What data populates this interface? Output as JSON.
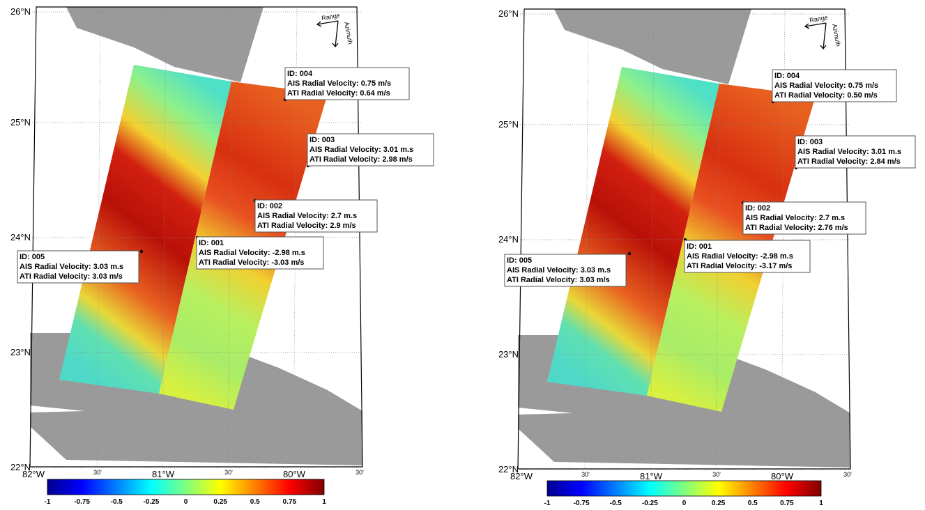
{
  "panels": [
    {
      "latitude_labels": [
        "26°N",
        "25°N",
        "24°N",
        "23°N",
        "22°N"
      ],
      "longitude_labels": [
        "82°W",
        "30'",
        "81°W",
        "30'",
        "80°W",
        "30'"
      ],
      "compass": {
        "range": "Range",
        "azimuth": "Azimuth"
      },
      "annotations": [
        {
          "id": "ID: 004",
          "ais": "AIS Radial Velocity: 0.75 m/s",
          "ati": "ATI Radial Velocity: 0.64 m/s"
        },
        {
          "id": "ID: 003",
          "ais": "AIS Radial Velocity: 3.01 m.s",
          "ati": "ATI Radial Velocity: 2.98 m/s"
        },
        {
          "id": "ID: 002",
          "ais": "AIS Radial Velocity: 2.7 m.s",
          "ati": "ATI Radial Velocity: 2.9 m/s"
        },
        {
          "id": "ID: 001",
          "ais": "AIS Radial Velocity: -2.98 m.s",
          "ati": "ATI Radial Velocity: -3.03 m/s"
        },
        {
          "id": "ID: 005",
          "ais": "AIS Radial Velocity: 3.03 m.s",
          "ati": "ATI Radial Velocity: 3.03 m/s"
        }
      ],
      "colorbar_ticks": [
        "-1",
        "-0.75",
        "-0.5",
        "-0.25",
        "0",
        "0.25",
        "0.5",
        "0.75",
        "1"
      ]
    },
    {
      "latitude_labels": [
        "26°N",
        "25°N",
        "24°N",
        "23°N",
        "22°N"
      ],
      "longitude_labels": [
        "82°W",
        "30'",
        "81°W",
        "30'",
        "80°W",
        "30'"
      ],
      "compass": {
        "range": "Range",
        "azimuth": "Azimuth"
      },
      "annotations": [
        {
          "id": "ID: 004",
          "ais": "AIS Radial Velocity: 0.75 m/s",
          "ati": "ATI Radial Velocity: 0.50 m/s"
        },
        {
          "id": "ID: 003",
          "ais": "AIS Radial Velocity: 3.01 m.s",
          "ati": "ATI Radial Velocity: 2.84 m/s"
        },
        {
          "id": "ID: 002",
          "ais": "AIS Radial Velocity: 2.7 m.s",
          "ati": "ATI Radial Velocity: 2.76 m/s"
        },
        {
          "id": "ID: 001",
          "ais": "AIS Radial Velocity: -2.98 m.s",
          "ati": "ATI Radial Velocity: -3.17 m/s"
        },
        {
          "id": "ID: 005",
          "ais": "AIS Radial Velocity: 3.03 m.s",
          "ati": "ATI Radial Velocity: 3.03 m/s"
        }
      ],
      "colorbar_ticks": [
        "-1",
        "-0.75",
        "-0.5",
        "-0.25",
        "0",
        "0.25",
        "0.5",
        "0.75",
        "1"
      ]
    }
  ]
}
